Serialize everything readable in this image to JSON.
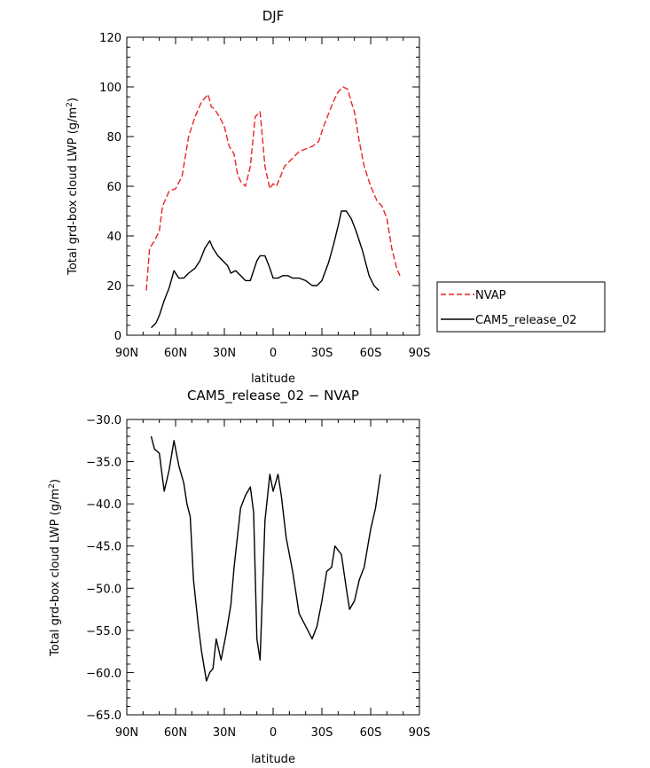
{
  "chart_data": [
    {
      "type": "line",
      "title": "DJF",
      "xlabel": "latitude",
      "ylabel_prefix": "Total grd-box cloud LWP (g/m",
      "ylabel_sup": "2",
      "ylabel_suffix": ")",
      "xlim": [
        -90,
        90
      ],
      "ylim": [
        0,
        120
      ],
      "xticks": [
        {
          "value": -90,
          "label": "90N"
        },
        {
          "value": -60,
          "label": "60N"
        },
        {
          "value": -30,
          "label": "30N"
        },
        {
          "value": 0,
          "label": "0"
        },
        {
          "value": 30,
          "label": "30S"
        },
        {
          "value": 60,
          "label": "60S"
        },
        {
          "value": 90,
          "label": "90S"
        }
      ],
      "yticks": [
        {
          "value": 0,
          "label": "0"
        },
        {
          "value": 20,
          "label": "20"
        },
        {
          "value": 40,
          "label": "40"
        },
        {
          "value": 60,
          "label": "60"
        },
        {
          "value": 80,
          "label": "80"
        },
        {
          "value": 100,
          "label": "100"
        },
        {
          "value": 120,
          "label": "120"
        }
      ],
      "legend_position": "right",
      "series": [
        {
          "name": "NVAP",
          "color": "#e8242a",
          "dash": true,
          "x": [
            -78,
            -76,
            -73,
            -70,
            -68,
            -64,
            -60,
            -56,
            -52,
            -48,
            -44,
            -40,
            -38,
            -36,
            -33,
            -30,
            -27,
            -24,
            -22,
            -20,
            -17,
            -14,
            -11,
            -8,
            -5,
            -2,
            0,
            2,
            4,
            7,
            10,
            13,
            16,
            20,
            24,
            28,
            31,
            34,
            37,
            40,
            43,
            46,
            48,
            50,
            53,
            56,
            60,
            64,
            67,
            70,
            73,
            76,
            78
          ],
          "y": [
            18,
            35,
            38,
            42,
            52,
            58,
            59,
            64,
            80,
            88,
            94,
            97,
            92,
            91,
            88,
            84,
            76,
            73,
            65,
            62,
            60,
            68,
            88,
            90,
            68,
            59,
            61,
            60,
            63,
            68,
            70,
            72,
            74,
            75,
            76,
            78,
            84,
            89,
            94,
            98,
            100,
            99,
            94,
            90,
            78,
            68,
            60,
            54,
            52,
            47,
            35,
            27,
            24
          ]
        },
        {
          "name": "CAM5_release_02",
          "color": "#000000",
          "dash": false,
          "x": [
            -75,
            -72,
            -70,
            -67,
            -64,
            -61,
            -58,
            -55,
            -52,
            -48,
            -45,
            -42,
            -39,
            -37,
            -34,
            -31,
            -28,
            -26,
            -23,
            -20,
            -17,
            -14,
            -10,
            -8,
            -5,
            -2,
            0,
            3,
            6,
            9,
            12,
            16,
            20,
            24,
            27,
            30,
            34,
            37,
            40,
            42,
            45,
            48,
            51,
            55,
            59,
            62,
            65
          ],
          "y": [
            3,
            5,
            8,
            14,
            19,
            26,
            23,
            23,
            25,
            27,
            30,
            35,
            38,
            35,
            32,
            30,
            28,
            25,
            26,
            24,
            22,
            22,
            30,
            32,
            32,
            27,
            23,
            23,
            24,
            24,
            23,
            23,
            22,
            20,
            20,
            22,
            29,
            36,
            44,
            50,
            50,
            47,
            42,
            34,
            24,
            20,
            18
          ]
        }
      ]
    },
    {
      "type": "line",
      "title": "CAM5_release_02 − NVAP",
      "xlabel": "latitude",
      "ylabel_prefix": "Total grd-box cloud LWP (g/m",
      "ylabel_sup": "2",
      "ylabel_suffix": ")",
      "xlim": [
        -90,
        90
      ],
      "ylim": [
        -65,
        -30
      ],
      "xticks": [
        {
          "value": -90,
          "label": "90N"
        },
        {
          "value": -60,
          "label": "60N"
        },
        {
          "value": -30,
          "label": "30N"
        },
        {
          "value": 0,
          "label": "0"
        },
        {
          "value": 30,
          "label": "30S"
        },
        {
          "value": 60,
          "label": "60S"
        },
        {
          "value": 90,
          "label": "90S"
        }
      ],
      "yticks": [
        {
          "value": -30,
          "label": "−30.0"
        },
        {
          "value": -35,
          "label": "−35.0"
        },
        {
          "value": -40,
          "label": "−40.0"
        },
        {
          "value": -45,
          "label": "−45.0"
        },
        {
          "value": -50,
          "label": "−50.0"
        },
        {
          "value": -55,
          "label": "−55.0"
        },
        {
          "value": -60,
          "label": "−60.0"
        },
        {
          "value": -65,
          "label": "−65.0"
        }
      ],
      "series": [
        {
          "color": "#000000",
          "dash": false,
          "x": [
            -75,
            -73,
            -70,
            -68,
            -67,
            -64,
            -61,
            -58,
            -55,
            -53,
            -51,
            -49,
            -46,
            -44,
            -41,
            -39,
            -37,
            -35,
            -32,
            -29,
            -26,
            -24,
            -20,
            -17,
            -14,
            -12,
            -10,
            -8,
            -5,
            -2,
            0,
            3,
            5,
            8,
            12,
            16,
            20,
            24,
            27,
            30,
            33,
            36,
            38,
            40,
            42,
            45,
            47,
            50,
            53,
            56,
            60,
            63,
            66
          ],
          "y": [
            -32,
            -33.5,
            -34,
            -37,
            -38.5,
            -36,
            -32.5,
            -35.5,
            -37.5,
            -40,
            -41.5,
            -49,
            -54.5,
            -57.5,
            -61,
            -60,
            -59.5,
            -56,
            -58.5,
            -55.5,
            -52,
            -47.5,
            -40.5,
            -39,
            -38,
            -41,
            -56,
            -58.5,
            -42,
            -36.5,
            -38.5,
            -36.5,
            -39,
            -44,
            -48,
            -53,
            -54.5,
            -56,
            -54.5,
            -51.5,
            -48,
            -47.5,
            -45,
            -45.5,
            -46,
            -50,
            -52.5,
            -51.5,
            -49,
            -47.5,
            -43,
            -40.5,
            -36.5
          ]
        }
      ]
    }
  ]
}
